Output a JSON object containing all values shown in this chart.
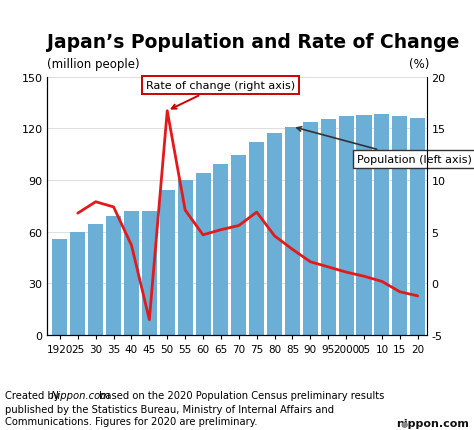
{
  "title": "Japan’s Population and Rate of Change",
  "ylabel_left": "(million people)",
  "ylabel_right": "(%)",
  "years": [
    1920,
    1925,
    1930,
    1935,
    1940,
    1945,
    1950,
    1955,
    1960,
    1965,
    1970,
    1975,
    1980,
    1985,
    1990,
    1995,
    2000,
    2005,
    2010,
    2015,
    2020
  ],
  "population": [
    55.9,
    59.7,
    64.5,
    69.3,
    71.9,
    72.1,
    84.1,
    90.1,
    94.3,
    99.2,
    104.7,
    111.9,
    117.1,
    121.0,
    123.6,
    125.6,
    126.9,
    127.8,
    128.1,
    127.1,
    125.7
  ],
  "rate_of_change": [
    null,
    6.8,
    7.9,
    7.4,
    3.7,
    -3.5,
    16.7,
    7.1,
    4.7,
    5.2,
    5.6,
    6.9,
    4.6,
    3.3,
    2.1,
    1.6,
    1.1,
    0.7,
    0.2,
    -0.8,
    -1.2
  ],
  "bar_color": "#6baed6",
  "line_color": "#e31a1c",
  "ylim_left": [
    0,
    150
  ],
  "ylim_right": [
    -5,
    20
  ],
  "yticks_left": [
    0,
    30,
    60,
    90,
    120,
    150
  ],
  "yticks_right": [
    -5,
    0,
    5,
    10,
    15,
    20
  ],
  "xtick_labels": [
    "1920",
    "25",
    "30",
    "35",
    "40",
    "45",
    "50",
    "55",
    "60",
    "65",
    "70",
    "75",
    "80",
    "85",
    "90",
    "95",
    "2000",
    "05",
    "10",
    "15",
    "20"
  ],
  "footnote_normal": "Created by ",
  "footnote_italic": "Nippon.com",
  "footnote_rest": " based on the 2020 Population Census preliminary results\npublished by the Statistics Bureau, Ministry of Internal Affairs and\nCommunications. Figures for 2020 are preliminary.",
  "annotation_rate": "Rate of change (right axis)",
  "annotation_pop": "Population (left axis)",
  "background_color": "#ffffff",
  "title_fontsize": 13.5,
  "axis_fontsize": 8.5,
  "tick_fontsize": 8,
  "footnote_fontsize": 7.2
}
